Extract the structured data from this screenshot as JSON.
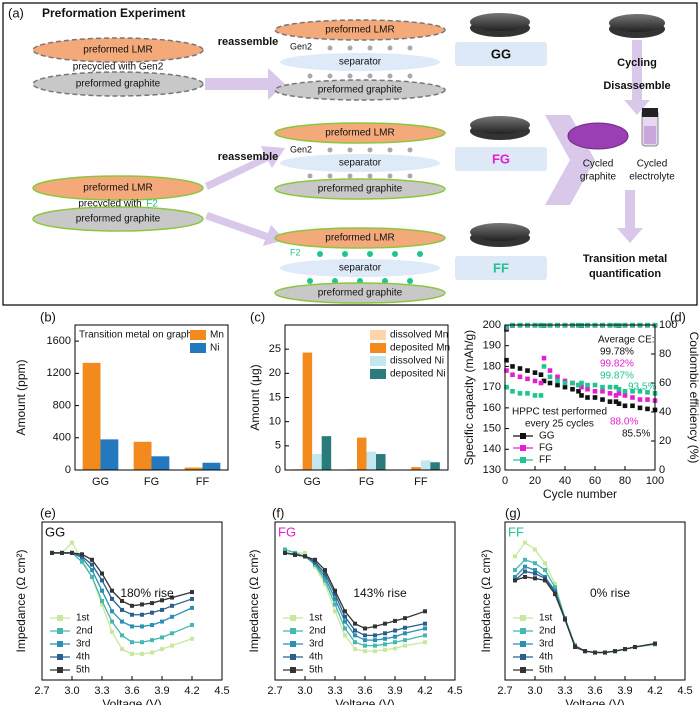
{
  "diagram": {
    "panel": "(a)",
    "title": "Preformation Experiment",
    "left_top": {
      "lmr": "preformed LMR",
      "precycle": "precycled with Gen2",
      "graphite": "preformed graphite"
    },
    "left_bottom": {
      "lmr": "preformed LMR",
      "precycle": "precycled with",
      "electrolyte": "F2",
      "graphite": "preformed graphite"
    },
    "reassemble": [
      "reassemble",
      "reassemble"
    ],
    "cells": [
      {
        "lmr": "preformed LMR",
        "electrolyte": "Gen2",
        "separator": "separator",
        "graphite": "preformed graphite",
        "label": "GG"
      },
      {
        "lmr": "preformed LMR",
        "electrolyte": "Gen2",
        "separator": "separator",
        "graphite": "preformed graphite",
        "label": "FG"
      },
      {
        "lmr": "preformed LMR",
        "electrolyte": "F2",
        "separator": "separator",
        "graphite": "preformed graphite",
        "label": "FF"
      }
    ],
    "steps": {
      "cycling": "Cycling",
      "disassemble": "Disassemble",
      "graphite": [
        "Cycled",
        "graphite"
      ],
      "electrolyte": [
        "Cycled",
        "electrolyte"
      ],
      "quant": [
        "Transition metal",
        "quantification"
      ]
    }
  },
  "chart_data": [
    {
      "type": "bar",
      "panel": "(b)",
      "annotation": "Transition metal on graphite",
      "ylabel": "Amount (ppm)",
      "categories": [
        "GG",
        "FG",
        "FF"
      ],
      "ylim": [
        0,
        1800
      ],
      "yticks": [
        0,
        400,
        800,
        1200,
        1600
      ],
      "legend": "top-right",
      "series": [
        {
          "name": "Mn",
          "color": "#f28a1e",
          "values": [
            1330,
            350,
            30
          ]
        },
        {
          "name": "Ni",
          "color": "#2478bd",
          "values": [
            380,
            170,
            90
          ]
        }
      ]
    },
    {
      "type": "bar",
      "panel": "(c)",
      "ylabel": "Amount (μg)",
      "categories": [
        "GG",
        "FG",
        "FF"
      ],
      "ylim": [
        0,
        30
      ],
      "yticks": [
        0,
        5,
        10,
        15,
        20,
        25
      ],
      "legend": "top-right",
      "series": [
        {
          "name": "dissolved Mn",
          "color": "#fdd5a8",
          "values": [
            0.2,
            0.2,
            0.1
          ]
        },
        {
          "name": "deposited Mn",
          "color": "#f28a1e",
          "values": [
            24.3,
            6.7,
            0.6
          ]
        },
        {
          "name": "dissolved Ni",
          "color": "#c4e6ef",
          "values": [
            3.3,
            3.8,
            2.0
          ]
        },
        {
          "name": "deposited Ni",
          "color": "#2a7b7b",
          "values": [
            7.0,
            3.3,
            1.6
          ]
        }
      ]
    },
    {
      "type": "scatter",
      "panel": "(d)",
      "xlabel": "Cycle number",
      "ylabel": "Specific capacity (mAh/g)",
      "y2label": "Coulombic efficiency (%)",
      "xlim": [
        0,
        100
      ],
      "xticks": [
        0,
        20,
        40,
        60,
        80,
        100
      ],
      "ylim": [
        130,
        200
      ],
      "yticks": [
        130,
        140,
        150,
        160,
        170,
        180,
        190,
        200
      ],
      "y2lim": [
        0,
        100
      ],
      "y2ticks": [
        0,
        20,
        40,
        60,
        80,
        100
      ],
      "legend": "bottom-left",
      "annotations": [
        "Average CE:",
        "99.78%",
        "99.82%",
        "99.87%",
        "93.5%",
        "88.0%",
        "85.5%",
        "HPPC test performed",
        "every 25 cycles"
      ],
      "x": [
        1,
        5,
        10,
        15,
        20,
        24,
        26,
        30,
        35,
        40,
        45,
        49,
        51,
        55,
        60,
        65,
        70,
        74,
        76,
        80,
        85,
        90,
        95,
        100
      ],
      "series": [
        {
          "name": "GG",
          "color": "#111111",
          "values": [
            183,
            180,
            179,
            178,
            177,
            176,
            173,
            172,
            171,
            170,
            169,
            168,
            166,
            165,
            165,
            164,
            163,
            163,
            162,
            161,
            161,
            160,
            159.5,
            159
          ]
        },
        {
          "name": "FG",
          "color": "#e61ed2",
          "values": [
            178,
            176,
            175,
            174,
            173,
            172,
            184,
            178,
            175,
            173,
            172,
            171,
            170,
            169,
            168,
            168,
            167,
            166,
            167,
            166,
            165,
            164,
            164,
            163.5
          ]
        },
        {
          "name": "FF",
          "color": "#1fc48f",
          "values": [
            170,
            168,
            167,
            167,
            166,
            166,
            180,
            175,
            173,
            172,
            172,
            171,
            172,
            171,
            171,
            170,
            170,
            170,
            169,
            168,
            168,
            168,
            167.5,
            167
          ]
        },
        {
          "color": "#111111",
          "axis": "y2",
          "values": [
            97,
            99.7,
            99.8,
            99.8,
            99.8,
            99.8,
            99.5,
            99.8,
            99.8,
            99.8,
            99.8,
            99.8,
            99.6,
            99.8,
            99.8,
            99.8,
            99.8,
            99.8,
            99.6,
            99.8,
            99.8,
            99.8,
            99.8,
            99.8
          ]
        },
        {
          "color": "#e61ed2",
          "axis": "y2",
          "values": [
            98,
            99.8,
            99.8,
            99.8,
            99.8,
            99.8,
            99.6,
            99.8,
            99.8,
            99.8,
            99.8,
            99.8,
            99.7,
            99.8,
            99.8,
            99.8,
            99.8,
            99.8,
            99.7,
            99.8,
            99.8,
            99.8,
            99.8,
            99.8
          ]
        },
        {
          "color": "#1fc48f",
          "axis": "y2",
          "values": [
            98.5,
            99.9,
            99.9,
            99.9,
            99.9,
            99.9,
            99.7,
            99.9,
            99.9,
            99.9,
            99.9,
            99.9,
            99.8,
            99.9,
            99.9,
            99.9,
            99.9,
            99.9,
            99.8,
            99.9,
            99.9,
            99.9,
            99.9,
            99.9
          ]
        }
      ]
    },
    {
      "type": "line",
      "panel": "(e)",
      "label": "GG",
      "label_color": "#111111",
      "annotation": "180% rise",
      "xlabel": "Voltage (V)",
      "ylabel": "Impedance (Ω cm²)",
      "xlim": [
        2.7,
        4.5
      ],
      "xticks": [
        2.7,
        {
          "value": 3,
          "label": "3.0"
        },
        3.3,
        3.6,
        3.9,
        4.2,
        4.5
      ],
      "ylim": [
        0,
        230
      ],
      "legend": "bottom-left",
      "x": [
        2.8,
        2.9,
        3.0,
        3.1,
        3.2,
        3.3,
        3.4,
        3.5,
        3.6,
        3.7,
        3.8,
        3.9,
        4.0,
        4.2
      ],
      "series": [
        {
          "name": "1st",
          "color": "#c8e89c",
          "values": [
            185,
            185,
            200,
            175,
            150,
            110,
            70,
            45,
            38,
            38,
            40,
            45,
            50,
            60
          ]
        },
        {
          "name": "2nd",
          "color": "#45b8b0",
          "values": [
            185,
            185,
            185,
            172,
            150,
            115,
            85,
            65,
            55,
            55,
            58,
            62,
            68,
            80
          ]
        },
        {
          "name": "3rd",
          "color": "#2a90b4",
          "values": [
            185,
            185,
            185,
            178,
            160,
            130,
            100,
            85,
            78,
            78,
            80,
            85,
            92,
            105
          ]
        },
        {
          "name": "4th",
          "color": "#2c5f8c",
          "values": [
            185,
            185,
            185,
            180,
            168,
            145,
            118,
            102,
            95,
            95,
            98,
            102,
            108,
            118
          ]
        },
        {
          "name": "5th",
          "color": "#333333",
          "values": [
            185,
            185,
            185,
            183,
            175,
            155,
            130,
            115,
            108,
            110,
            112,
            116,
            120,
            128
          ]
        }
      ]
    },
    {
      "type": "line",
      "panel": "(f)",
      "label": "FG",
      "label_color": "#e61ed2",
      "annotation": "143% rise",
      "xlabel": "Voltage (V)",
      "ylabel": "Impedance (Ω cm²)",
      "xlim": [
        2.7,
        4.5
      ],
      "xticks": [
        2.7,
        {
          "value": 3,
          "label": "3.0"
        },
        3.3,
        3.6,
        3.9,
        4.2,
        4.5
      ],
      "ylim": [
        0,
        230
      ],
      "legend": "bottom-left",
      "x": [
        2.8,
        2.9,
        3.0,
        3.1,
        3.2,
        3.3,
        3.4,
        3.5,
        3.6,
        3.7,
        3.8,
        3.9,
        4.0,
        4.2
      ],
      "series": [
        {
          "name": "1st",
          "color": "#c8e89c",
          "values": [
            190,
            185,
            185,
            165,
            140,
            100,
            65,
            45,
            42,
            42,
            44,
            46,
            50,
            55
          ]
        },
        {
          "name": "2nd",
          "color": "#45b8b0",
          "values": [
            190,
            185,
            180,
            168,
            145,
            110,
            75,
            55,
            50,
            50,
            52,
            55,
            58,
            65
          ]
        },
        {
          "name": "3rd",
          "color": "#2a90b4",
          "values": [
            185,
            183,
            180,
            170,
            150,
            118,
            85,
            65,
            58,
            58,
            60,
            63,
            68,
            75
          ]
        },
        {
          "name": "4th",
          "color": "#2c5f8c",
          "values": [
            185,
            183,
            180,
            172,
            155,
            125,
            92,
            72,
            65,
            65,
            68,
            72,
            76,
            82
          ]
        },
        {
          "name": "5th",
          "color": "#333333",
          "values": [
            185,
            182,
            180,
            175,
            160,
            130,
            100,
            82,
            75,
            78,
            82,
            86,
            90,
            100
          ]
        }
      ]
    },
    {
      "type": "line",
      "panel": "(g)",
      "label": "FF",
      "label_color": "#1fc48f",
      "annotation": "0% rise",
      "xlabel": "Voltage (V)",
      "ylabel": "Impedance (Ω cm²)",
      "xlim": [
        2.7,
        4.5
      ],
      "xticks": [
        2.7,
        {
          "value": 3,
          "label": "3.0"
        },
        3.3,
        3.6,
        3.9,
        4.2,
        4.5
      ],
      "ylim": [
        0,
        230
      ],
      "legend": "bottom-left",
      "x": [
        2.8,
        2.9,
        3.0,
        3.1,
        3.2,
        3.3,
        3.4,
        3.5,
        3.6,
        3.7,
        3.8,
        3.9,
        4.0,
        4.2
      ],
      "series": [
        {
          "name": "1st",
          "color": "#c8e89c",
          "values": [
            180,
            200,
            190,
            170,
            140,
            90,
            50,
            42,
            40,
            40,
            42,
            45,
            48,
            52
          ]
        },
        {
          "name": "2nd",
          "color": "#45b8b0",
          "values": [
            160,
            175,
            170,
            160,
            135,
            90,
            50,
            42,
            40,
            40,
            42,
            45,
            48,
            52
          ]
        },
        {
          "name": "3rd",
          "color": "#2a90b4",
          "values": [
            150,
            165,
            160,
            150,
            130,
            90,
            50,
            42,
            40,
            40,
            42,
            45,
            48,
            53
          ]
        },
        {
          "name": "4th",
          "color": "#2c5f8c",
          "values": [
            145,
            158,
            155,
            148,
            128,
            88,
            50,
            42,
            40,
            40,
            42,
            45,
            48,
            53
          ]
        },
        {
          "name": "5th",
          "color": "#333333",
          "values": [
            145,
            150,
            148,
            145,
            125,
            88,
            48,
            42,
            40,
            40,
            42,
            45,
            48,
            53
          ]
        }
      ]
    }
  ]
}
